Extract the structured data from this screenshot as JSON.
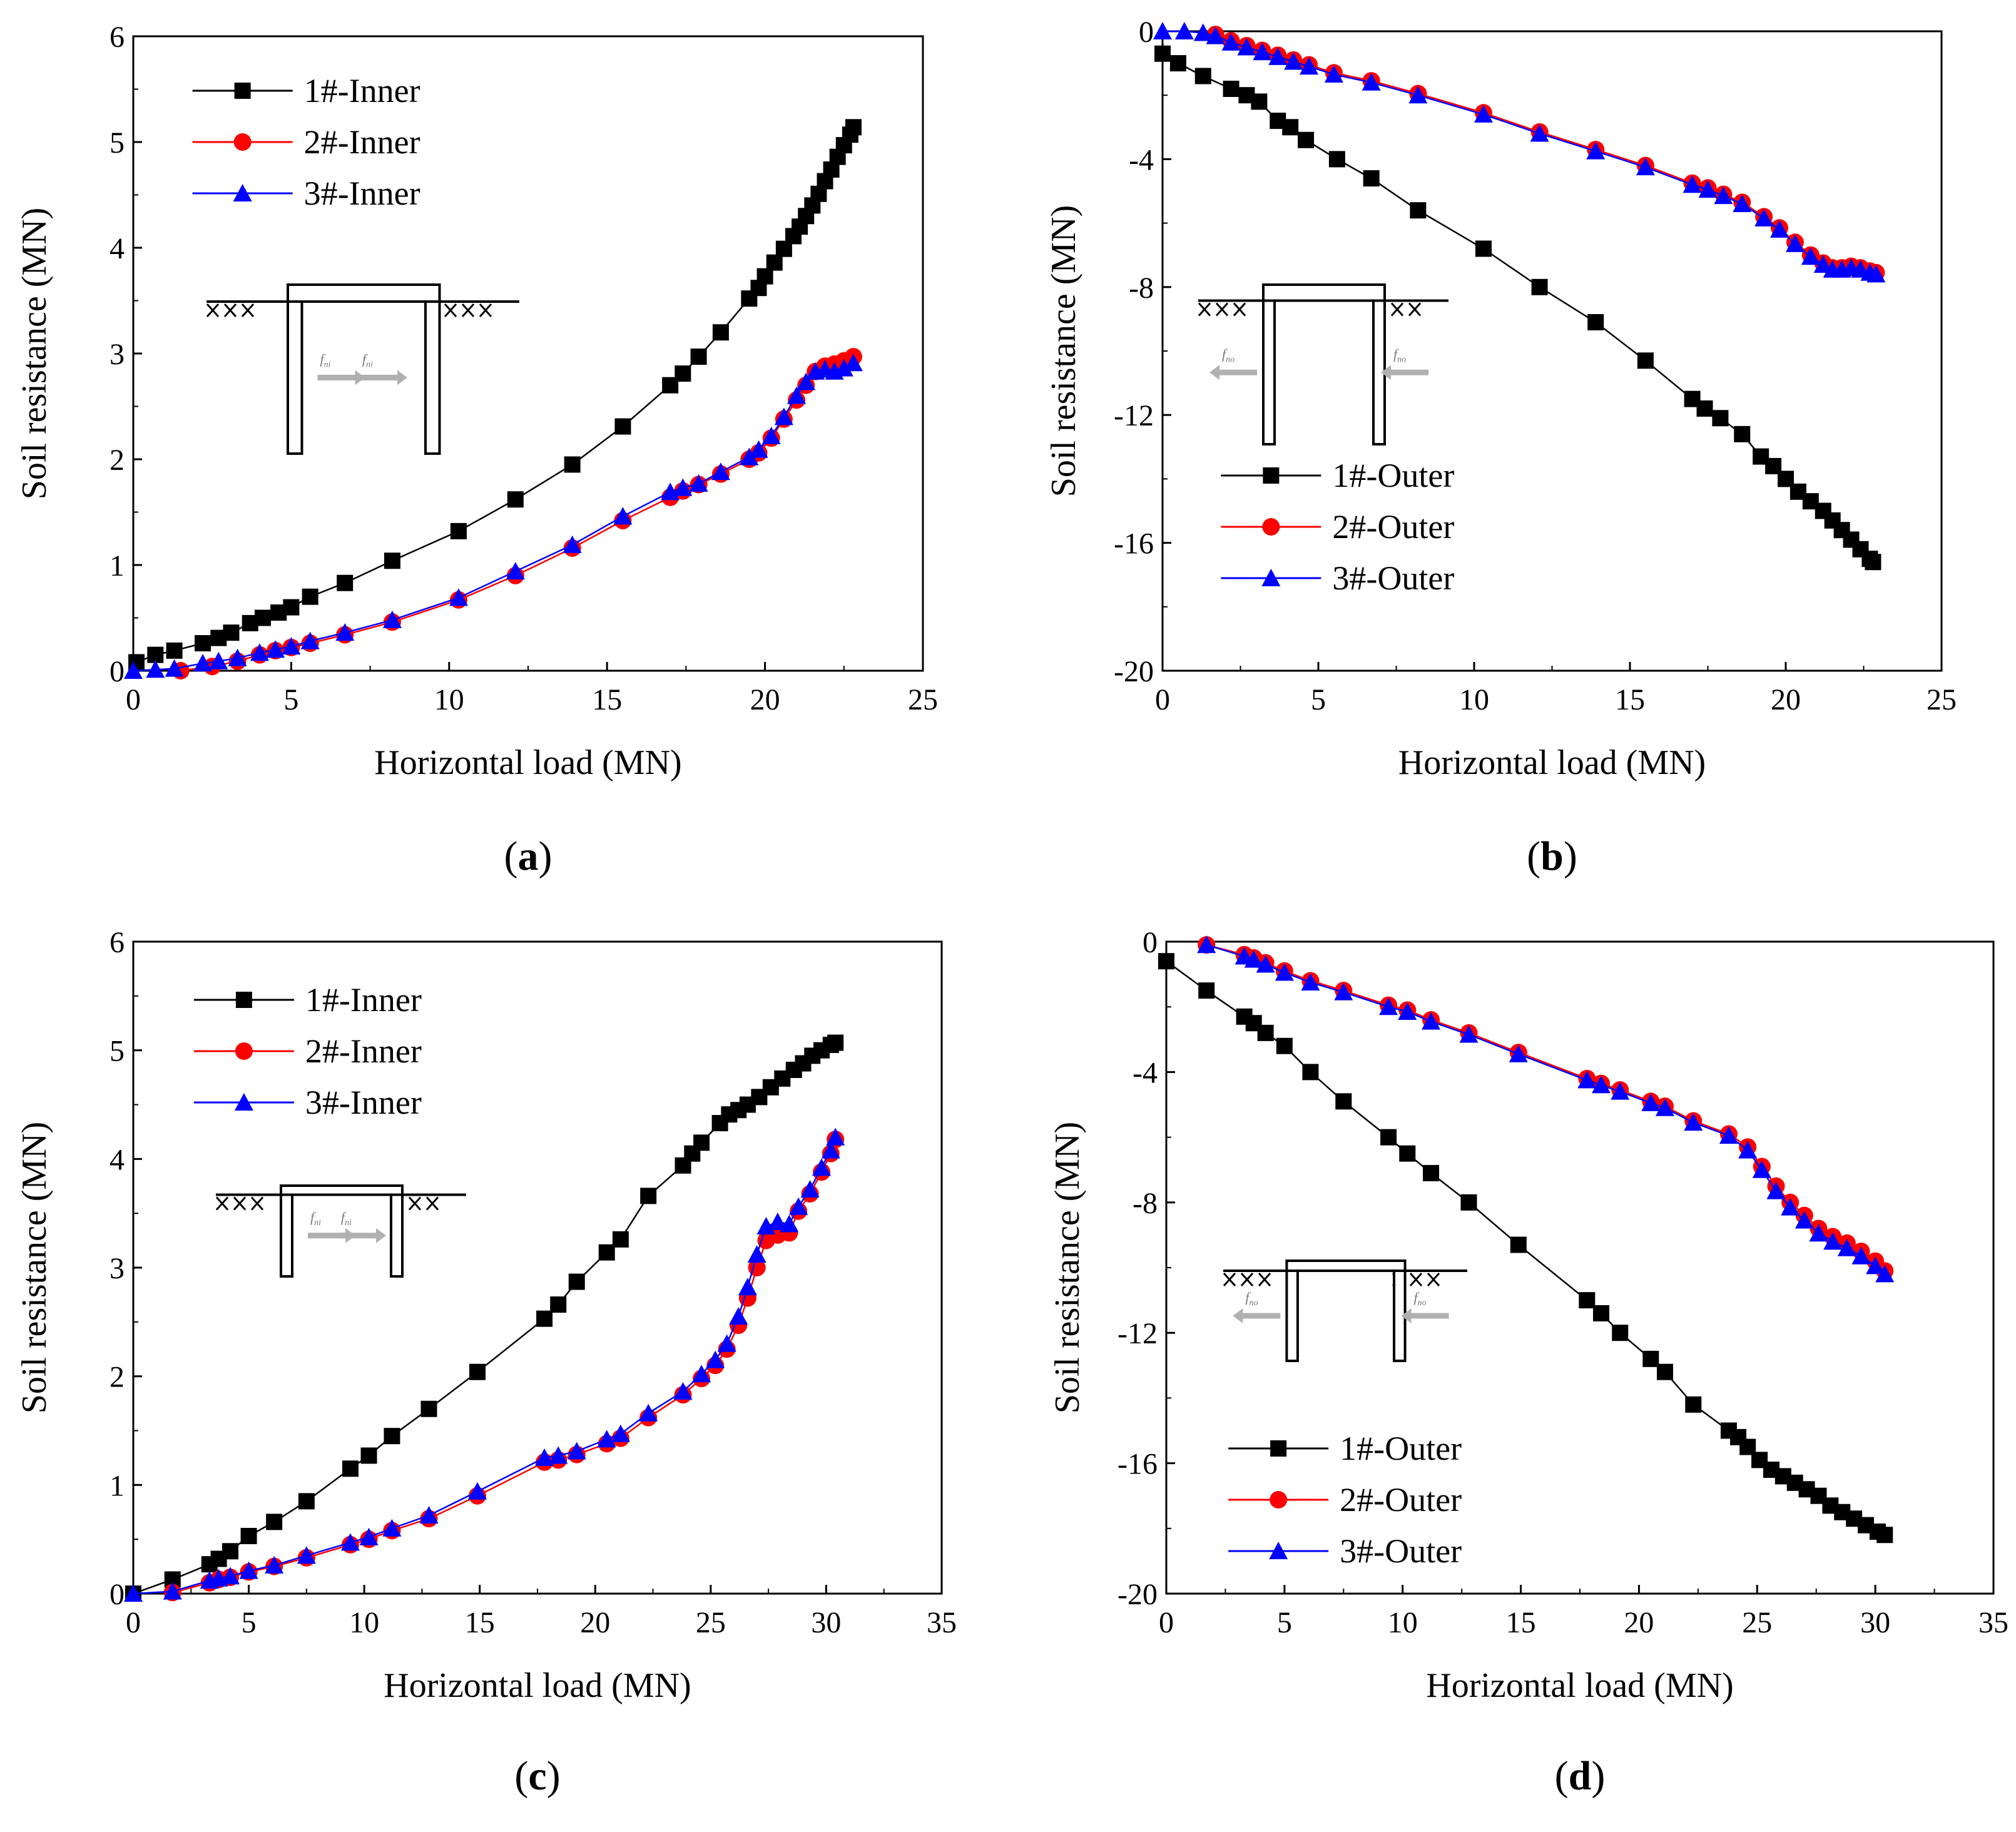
{
  "colors": {
    "series1": "#000000",
    "series2": "#ff0000",
    "series3": "#0000ff",
    "arrow": "#b0b0b0"
  },
  "chart_data": [
    {
      "panel": "a",
      "caption": "(a)",
      "type": "line",
      "xlabel": "Horizontal load (MN)",
      "ylabel": "Soil resistance (MN)",
      "xlim": [
        0,
        25
      ],
      "ylim": [
        0,
        6
      ],
      "xticks": [
        0,
        5,
        10,
        15,
        20,
        25
      ],
      "yticks": [
        0,
        1,
        2,
        3,
        4,
        5,
        6
      ],
      "xtick_labels": [
        "0",
        "5",
        "10",
        "15",
        "20",
        "25"
      ],
      "ytick_labels": [
        "0",
        "1",
        "2",
        "3",
        "4",
        "5",
        "6"
      ],
      "legend_position": "top-left",
      "schematic_labels": [
        "f_ni",
        "f_ni"
      ],
      "series": [
        {
          "name": "1#-Inner",
          "marker": "square",
          "color": "#000000",
          "x": [
            0.1,
            0.7,
            1.3,
            2.2,
            2.7,
            3.1,
            3.7,
            4.1,
            4.6,
            5.0,
            5.6,
            6.7,
            8.2,
            10.3,
            12.1,
            13.9,
            15.5,
            17.0,
            17.4,
            17.9,
            18.6,
            19.5,
            19.8,
            20.0,
            20.3,
            20.6,
            20.9,
            21.1,
            21.3,
            21.5,
            21.7,
            21.9,
            22.1,
            22.3,
            22.5,
            22.7,
            22.8
          ],
          "y": [
            0.08,
            0.15,
            0.19,
            0.26,
            0.31,
            0.36,
            0.45,
            0.5,
            0.55,
            0.6,
            0.7,
            0.83,
            1.04,
            1.32,
            1.62,
            1.95,
            2.31,
            2.7,
            2.81,
            2.97,
            3.2,
            3.52,
            3.62,
            3.73,
            3.86,
            3.99,
            4.11,
            4.2,
            4.3,
            4.4,
            4.51,
            4.63,
            4.74,
            4.86,
            4.97,
            5.07,
            5.14
          ]
        },
        {
          "name": "2#-Inner",
          "marker": "circle",
          "color": "#ff0000",
          "x": [
            1.5,
            2.5,
            3.3,
            4.0,
            4.5,
            5.0,
            5.6,
            6.7,
            8.2,
            10.3,
            12.1,
            13.9,
            15.5,
            17.0,
            17.4,
            17.9,
            18.6,
            19.5,
            19.8,
            20.2,
            20.6,
            21.0,
            21.3,
            21.6,
            21.9,
            22.2,
            22.5,
            22.8
          ],
          "y": [
            0.0,
            0.04,
            0.09,
            0.15,
            0.19,
            0.22,
            0.26,
            0.34,
            0.46,
            0.67,
            0.9,
            1.16,
            1.42,
            1.64,
            1.7,
            1.76,
            1.86,
            2.0,
            2.06,
            2.2,
            2.38,
            2.56,
            2.7,
            2.83,
            2.88,
            2.9,
            2.93,
            2.97
          ]
        },
        {
          "name": "3#-Inner",
          "marker": "triangle",
          "color": "#0000ff",
          "x": [
            0.0,
            0.7,
            1.3,
            2.2,
            2.7,
            3.3,
            4.0,
            4.5,
            5.0,
            5.6,
            6.7,
            8.2,
            10.3,
            12.1,
            13.9,
            15.5,
            17.0,
            17.4,
            17.9,
            18.6,
            19.5,
            19.8,
            20.2,
            20.6,
            21.0,
            21.3,
            21.6,
            21.9,
            22.2,
            22.5,
            22.8
          ],
          "y": [
            0.0,
            0.01,
            0.02,
            0.07,
            0.09,
            0.12,
            0.17,
            0.2,
            0.23,
            0.28,
            0.36,
            0.48,
            0.69,
            0.94,
            1.19,
            1.46,
            1.69,
            1.73,
            1.77,
            1.88,
            2.02,
            2.09,
            2.22,
            2.4,
            2.6,
            2.73,
            2.83,
            2.85,
            2.83,
            2.86,
            2.91
          ]
        }
      ]
    },
    {
      "panel": "b",
      "caption": "(b)",
      "type": "line",
      "xlabel": "Horizontal load (MN)",
      "ylabel": "Soil resistance (MN)",
      "xlim": [
        0,
        25
      ],
      "ylim": [
        -20,
        0
      ],
      "xticks": [
        0,
        5,
        10,
        15,
        20,
        25
      ],
      "yticks": [
        0,
        -4,
        -8,
        -12,
        -16,
        -20
      ],
      "xtick_labels": [
        "0",
        "5",
        "10",
        "15",
        "20",
        "25"
      ],
      "ytick_labels": [
        "0",
        "-4",
        "-8",
        "-12",
        "-16",
        "-20"
      ],
      "legend_position": "bottom-left",
      "schematic_labels": [
        "f_no",
        "f_no"
      ],
      "series": [
        {
          "name": "1#-Outer",
          "marker": "square",
          "color": "#000000",
          "x": [
            0.0,
            0.5,
            1.3,
            2.2,
            2.7,
            3.1,
            3.7,
            4.1,
            4.6,
            5.6,
            6.7,
            8.2,
            10.3,
            12.1,
            13.9,
            15.5,
            17.0,
            17.4,
            17.9,
            18.6,
            19.2,
            19.6,
            20.0,
            20.4,
            20.8,
            21.2,
            21.5,
            21.8,
            22.1,
            22.4,
            22.7,
            22.8
          ],
          "y": [
            -0.7,
            -1.0,
            -1.4,
            -1.8,
            -2.0,
            -2.2,
            -2.8,
            -3.0,
            -3.4,
            -4.0,
            -4.6,
            -5.6,
            -6.8,
            -8.0,
            -9.1,
            -10.3,
            -11.5,
            -11.8,
            -12.1,
            -12.6,
            -13.3,
            -13.6,
            -14.0,
            -14.4,
            -14.7,
            -15.0,
            -15.3,
            -15.6,
            -15.9,
            -16.2,
            -16.5,
            -16.6
          ]
        },
        {
          "name": "2#-Outer",
          "marker": "circle",
          "color": "#ff0000",
          "x": [
            1.7,
            2.2,
            2.7,
            3.2,
            3.7,
            4.2,
            4.7,
            5.5,
            6.7,
            8.2,
            10.3,
            12.1,
            13.9,
            15.5,
            17.0,
            17.5,
            18.0,
            18.6,
            19.3,
            19.8,
            20.3,
            20.8,
            21.2,
            21.5,
            21.8,
            22.1,
            22.4,
            22.7,
            22.9
          ],
          "y": [
            -0.1,
            -0.3,
            -0.45,
            -0.6,
            -0.75,
            -0.9,
            -1.05,
            -1.3,
            -1.55,
            -1.95,
            -2.55,
            -3.15,
            -3.7,
            -4.2,
            -4.75,
            -4.9,
            -5.1,
            -5.35,
            -5.8,
            -6.15,
            -6.6,
            -7.0,
            -7.25,
            -7.4,
            -7.4,
            -7.35,
            -7.4,
            -7.5,
            -7.55
          ]
        },
        {
          "name": "3#-Outer",
          "marker": "triangle",
          "color": "#0000ff",
          "x": [
            0.0,
            0.7,
            1.3,
            1.7,
            2.2,
            2.7,
            3.2,
            3.7,
            4.2,
            4.7,
            5.5,
            6.7,
            8.2,
            10.3,
            12.1,
            13.9,
            15.5,
            17.0,
            17.5,
            18.0,
            18.6,
            19.3,
            19.8,
            20.3,
            20.8,
            21.2,
            21.5,
            21.8,
            22.1,
            22.4,
            22.7,
            22.9
          ],
          "y": [
            0.0,
            0.0,
            -0.05,
            -0.15,
            -0.35,
            -0.5,
            -0.65,
            -0.8,
            -0.95,
            -1.1,
            -1.35,
            -1.6,
            -2.0,
            -2.6,
            -3.2,
            -3.75,
            -4.25,
            -4.8,
            -4.95,
            -5.15,
            -5.4,
            -5.85,
            -6.2,
            -6.65,
            -7.05,
            -7.3,
            -7.45,
            -7.45,
            -7.4,
            -7.45,
            -7.55,
            -7.6
          ]
        }
      ]
    },
    {
      "panel": "c",
      "caption": "(c)",
      "type": "line",
      "xlabel": "Horizontal load (MN)",
      "ylabel": "Soil resistance (MN)",
      "xlim": [
        0,
        35
      ],
      "ylim": [
        0,
        6
      ],
      "xticks": [
        0,
        5,
        10,
        15,
        20,
        25,
        30,
        35
      ],
      "yticks": [
        0,
        1,
        2,
        3,
        4,
        5,
        6
      ],
      "xtick_labels": [
        "0",
        "5",
        "10",
        "15",
        "20",
        "25",
        "30",
        "35"
      ],
      "ytick_labels": [
        "0",
        "1",
        "2",
        "3",
        "4",
        "5",
        "6"
      ],
      "legend_position": "top-left",
      "schematic_labels": [
        "f_ni",
        "f_ni"
      ],
      "series": [
        {
          "name": "1#-Inner",
          "marker": "square",
          "color": "#000000",
          "x": [
            0.0,
            1.7,
            3.3,
            3.7,
            4.2,
            5.0,
            6.1,
            7.5,
            9.4,
            10.2,
            11.2,
            12.8,
            14.9,
            17.8,
            18.4,
            19.2,
            20.5,
            21.1,
            22.3,
            23.8,
            24.2,
            24.6,
            25.4,
            25.8,
            26.2,
            26.6,
            27.1,
            27.6,
            28.1,
            28.6,
            29.0,
            29.4,
            29.8,
            30.2,
            30.4
          ],
          "y": [
            0.0,
            0.13,
            0.27,
            0.32,
            0.39,
            0.53,
            0.66,
            0.85,
            1.15,
            1.27,
            1.45,
            1.7,
            2.04,
            2.53,
            2.66,
            2.87,
            3.14,
            3.26,
            3.66,
            3.94,
            4.05,
            4.15,
            4.33,
            4.41,
            4.45,
            4.5,
            4.57,
            4.66,
            4.74,
            4.82,
            4.88,
            4.95,
            5.0,
            5.05,
            5.07
          ]
        },
        {
          "name": "2#-Inner",
          "marker": "circle",
          "color": "#ff0000",
          "x": [
            1.7,
            3.3,
            3.7,
            4.2,
            5.0,
            6.1,
            7.5,
            9.4,
            10.2,
            11.2,
            12.8,
            14.9,
            17.8,
            18.4,
            19.2,
            20.5,
            21.1,
            22.3,
            23.8,
            24.6,
            25.2,
            25.7,
            26.2,
            26.6,
            27.0,
            27.4,
            27.9,
            28.4,
            28.8,
            29.3,
            29.8,
            30.2,
            30.4
          ],
          "y": [
            0.01,
            0.1,
            0.13,
            0.15,
            0.2,
            0.25,
            0.33,
            0.45,
            0.5,
            0.58,
            0.69,
            0.9,
            1.21,
            1.23,
            1.28,
            1.38,
            1.43,
            1.62,
            1.83,
            1.98,
            2.1,
            2.25,
            2.47,
            2.72,
            3.0,
            3.25,
            3.3,
            3.32,
            3.52,
            3.68,
            3.88,
            4.05,
            4.18
          ]
        },
        {
          "name": "3#-Inner",
          "marker": "triangle",
          "color": "#0000ff",
          "x": [
            0.0,
            1.7,
            3.3,
            3.7,
            4.2,
            5.0,
            6.1,
            7.5,
            9.4,
            10.2,
            11.2,
            12.8,
            14.9,
            17.8,
            18.4,
            19.2,
            20.5,
            21.1,
            22.3,
            23.8,
            24.6,
            25.2,
            25.7,
            26.2,
            26.6,
            27.0,
            27.4,
            27.9,
            28.4,
            28.8,
            29.3,
            29.8,
            30.2,
            30.4
          ],
          "y": [
            0.0,
            0.02,
            0.12,
            0.14,
            0.16,
            0.21,
            0.26,
            0.35,
            0.47,
            0.52,
            0.6,
            0.72,
            0.94,
            1.25,
            1.27,
            1.31,
            1.42,
            1.47,
            1.66,
            1.86,
            2.02,
            2.15,
            2.3,
            2.55,
            2.82,
            3.12,
            3.38,
            3.42,
            3.4,
            3.56,
            3.72,
            3.92,
            4.08,
            4.2
          ]
        }
      ]
    },
    {
      "panel": "d",
      "caption": "(d)",
      "type": "line",
      "xlabel": "Horizontal load (MN)",
      "ylabel": "Soil resistance (MN)",
      "xlim": [
        0,
        35
      ],
      "ylim": [
        -20,
        0
      ],
      "xticks": [
        0,
        5,
        10,
        15,
        20,
        25,
        30,
        35
      ],
      "yticks": [
        0,
        -4,
        -8,
        -12,
        -16,
        -20
      ],
      "xtick_labels": [
        "0",
        "5",
        "10",
        "15",
        "20",
        "25",
        "30",
        "35"
      ],
      "ytick_labels": [
        "0",
        "-4",
        "-8",
        "-12",
        "-16",
        "-20"
      ],
      "legend_position": "bottom-left",
      "schematic_labels": [
        "f_no",
        "f_no"
      ],
      "series": [
        {
          "name": "1#-Outer",
          "marker": "square",
          "color": "#000000",
          "x": [
            0.0,
            1.7,
            3.3,
            3.7,
            4.2,
            5.0,
            6.1,
            7.5,
            9.4,
            10.2,
            11.2,
            12.8,
            14.9,
            17.8,
            18.4,
            19.2,
            20.5,
            21.1,
            22.3,
            23.8,
            24.2,
            24.6,
            25.1,
            25.6,
            26.1,
            26.6,
            27.1,
            27.6,
            28.1,
            28.6,
            29.1,
            29.6,
            30.1,
            30.4
          ],
          "y": [
            -0.6,
            -1.5,
            -2.3,
            -2.5,
            -2.8,
            -3.2,
            -4.0,
            -4.9,
            -6.0,
            -6.5,
            -7.1,
            -8.0,
            -9.3,
            -11.0,
            -11.4,
            -12.0,
            -12.8,
            -13.2,
            -14.2,
            -15.0,
            -15.2,
            -15.5,
            -15.9,
            -16.2,
            -16.4,
            -16.6,
            -16.8,
            -17.0,
            -17.3,
            -17.5,
            -17.7,
            -17.9,
            -18.1,
            -18.2
          ]
        },
        {
          "name": "2#-Outer",
          "marker": "circle",
          "color": "#ff0000",
          "x": [
            1.7,
            3.3,
            3.7,
            4.2,
            5.0,
            6.1,
            7.5,
            9.4,
            10.2,
            11.2,
            12.8,
            14.9,
            17.8,
            18.4,
            19.2,
            20.5,
            21.1,
            22.3,
            23.8,
            24.6,
            25.2,
            25.8,
            26.4,
            27.0,
            27.6,
            28.2,
            28.8,
            29.4,
            30.0,
            30.4
          ],
          "y": [
            -0.1,
            -0.4,
            -0.5,
            -0.65,
            -0.9,
            -1.2,
            -1.5,
            -1.95,
            -2.1,
            -2.4,
            -2.8,
            -3.4,
            -4.2,
            -4.35,
            -4.55,
            -4.9,
            -5.05,
            -5.5,
            -5.9,
            -6.3,
            -6.9,
            -7.5,
            -8.0,
            -8.4,
            -8.8,
            -9.05,
            -9.25,
            -9.5,
            -9.8,
            -10.1
          ]
        },
        {
          "name": "3#-Outer",
          "marker": "triangle",
          "color": "#0000ff",
          "x": [
            1.7,
            3.3,
            3.7,
            4.2,
            5.0,
            6.1,
            7.5,
            9.4,
            10.2,
            11.2,
            12.8,
            14.9,
            17.8,
            18.4,
            19.2,
            20.5,
            21.1,
            22.3,
            23.8,
            24.6,
            25.2,
            25.8,
            26.4,
            27.0,
            27.6,
            28.2,
            28.8,
            29.4,
            30.0,
            30.4
          ],
          "y": [
            -0.1,
            -0.45,
            -0.55,
            -0.7,
            -0.95,
            -1.25,
            -1.55,
            -2.0,
            -2.15,
            -2.45,
            -2.85,
            -3.45,
            -4.25,
            -4.4,
            -4.6,
            -4.95,
            -5.1,
            -5.55,
            -5.95,
            -6.4,
            -7.0,
            -7.65,
            -8.15,
            -8.55,
            -8.95,
            -9.2,
            -9.4,
            -9.65,
            -9.95,
            -10.2
          ]
        }
      ]
    }
  ]
}
